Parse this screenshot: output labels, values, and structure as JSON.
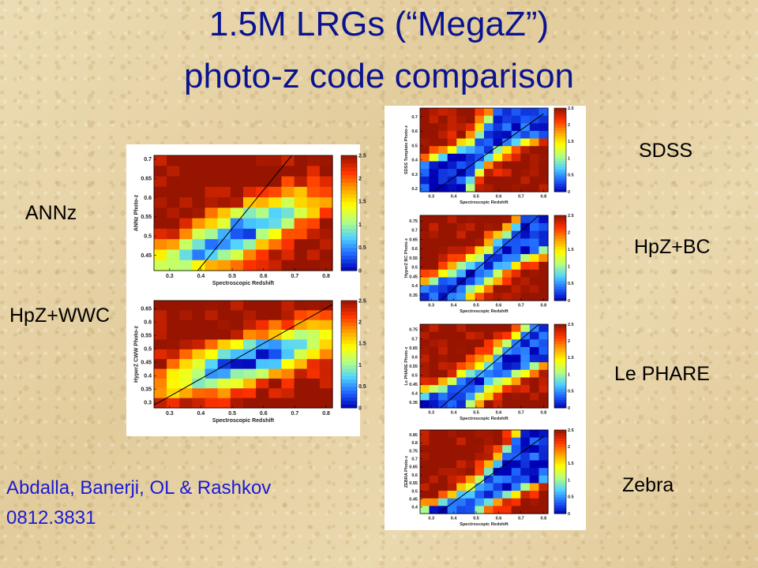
{
  "title_line1": "1.5M LRGs (“MegaZ”)",
  "title_line2": "photo-z code comparison",
  "labels": {
    "annz": "ANNz",
    "hpz_wwc": "HpZ+WWC",
    "sdss": "SDSS",
    "hpz_bc": "HpZ+BC",
    "le_phare": "Le PHARE",
    "zebra": "Zebra"
  },
  "citation": {
    "authors": "Abdalla, Banerji, OL &  Rashkov",
    "arxiv": "0812.3831"
  },
  "chart_data": [
    {
      "type": "heatmap",
      "xlabel": "Spectroscopic Redshift",
      "ylabel": "ANNz Photo-z",
      "x_ticks": [
        0.3,
        0.4,
        0.5,
        0.6,
        0.7,
        0.8
      ],
      "y_ticks": [
        0.45,
        0.5,
        0.55,
        0.6,
        0.65,
        0.7
      ],
      "colorbar_ticks": [
        0,
        0.5,
        1,
        1.5,
        2,
        2.5
      ],
      "xlim": [
        0.25,
        0.82
      ],
      "ylim": [
        0.41,
        0.71
      ],
      "clim": [
        0,
        2.5
      ],
      "line": [
        [
          0.39,
          0.41
        ],
        [
          0.69,
          0.71
        ]
      ],
      "peak": [
        0.5,
        0.5
      ]
    },
    {
      "type": "heatmap",
      "xlabel": "Spectroscopic Redshift",
      "ylabel": "HyperZ CWW Photo-z",
      "x_ticks": [
        0.3,
        0.4,
        0.5,
        0.6,
        0.7,
        0.8
      ],
      "y_ticks": [
        0.3,
        0.35,
        0.4,
        0.45,
        0.5,
        0.55,
        0.6,
        0.65
      ],
      "colorbar_ticks": [
        0,
        0.5,
        1,
        1.5,
        2,
        2.5
      ],
      "xlim": [
        0.25,
        0.82
      ],
      "ylim": [
        0.28,
        0.68
      ],
      "clim": [
        0,
        2.5
      ],
      "line": [
        [
          0.25,
          0.29
        ],
        [
          0.82,
          0.665
        ]
      ],
      "peak": [
        0.56,
        0.46
      ]
    },
    {
      "type": "heatmap",
      "xlabel": "Spectroscopic Redshift",
      "ylabel": "SDSS Template Photo-z",
      "x_ticks": [
        0.3,
        0.4,
        0.5,
        0.6,
        0.7,
        0.8
      ],
      "y_ticks": [
        0.2,
        0.3,
        0.4,
        0.5,
        0.6,
        0.7
      ],
      "colorbar_ticks": [
        0,
        0.5,
        1,
        1.5,
        2,
        2.5
      ],
      "xlim": [
        0.25,
        0.82
      ],
      "ylim": [
        0.18,
        0.76
      ],
      "clim": [
        0,
        2.5
      ],
      "line": [
        [
          0.31,
          0.18
        ],
        [
          0.8,
          0.72
        ]
      ],
      "peak": [
        0.52,
        0.47
      ]
    },
    {
      "type": "heatmap",
      "xlabel": "Spectroscopic Redshift",
      "ylabel": "HyperZ BC Photo-z",
      "x_ticks": [
        0.3,
        0.4,
        0.5,
        0.6,
        0.7,
        0.8
      ],
      "y_ticks": [
        0.35,
        0.4,
        0.45,
        0.5,
        0.55,
        0.6,
        0.65,
        0.7,
        0.75
      ],
      "colorbar_ticks": [
        0,
        0.5,
        1,
        1.5,
        2,
        2.5
      ],
      "xlim": [
        0.25,
        0.82
      ],
      "ylim": [
        0.32,
        0.78
      ],
      "clim": [
        0,
        2.5
      ],
      "line": [
        [
          0.34,
          0.32
        ],
        [
          0.78,
          0.78
        ]
      ],
      "peak": [
        0.52,
        0.49
      ]
    },
    {
      "type": "heatmap",
      "xlabel": "Spectroscopic Redshift",
      "ylabel": "Le PHARE Photo-z",
      "x_ticks": [
        0.3,
        0.4,
        0.5,
        0.6,
        0.7,
        0.8
      ],
      "y_ticks": [
        0.35,
        0.4,
        0.45,
        0.5,
        0.55,
        0.6,
        0.65,
        0.7,
        0.75
      ],
      "colorbar_ticks": [
        0,
        0.5,
        1,
        1.5,
        2,
        2.5
      ],
      "xlim": [
        0.25,
        0.82
      ],
      "ylim": [
        0.32,
        0.78
      ],
      "clim": [
        0,
        2.5
      ],
      "line": [
        [
          0.34,
          0.32
        ],
        [
          0.78,
          0.78
        ]
      ],
      "peak": [
        0.53,
        0.48
      ]
    },
    {
      "type": "heatmap",
      "xlabel": "Spectroscopic Redshift",
      "ylabel": "ZEBRA Photo-z",
      "x_ticks": [
        0.3,
        0.4,
        0.5,
        0.6,
        0.7,
        0.8
      ],
      "y_ticks": [
        0.4,
        0.45,
        0.5,
        0.55,
        0.6,
        0.65,
        0.7,
        0.75,
        0.8,
        0.85
      ],
      "colorbar_ticks": [
        0,
        0.5,
        1,
        1.5,
        2,
        2.5
      ],
      "xlim": [
        0.25,
        0.82
      ],
      "ylim": [
        0.36,
        0.88
      ],
      "clim": [
        0,
        2.5
      ],
      "line": [
        [
          0.33,
          0.36
        ],
        [
          0.8,
          0.84
        ]
      ],
      "peak": [
        0.5,
        0.46
      ]
    }
  ],
  "colors": {
    "title": "#0a1490",
    "citation": "#1a1ad6",
    "colormap": [
      "#0000b4",
      "#1e64ff",
      "#50d2ff",
      "#b4ff82",
      "#ffff00",
      "#ffa000",
      "#ff3200",
      "#961400"
    ]
  }
}
